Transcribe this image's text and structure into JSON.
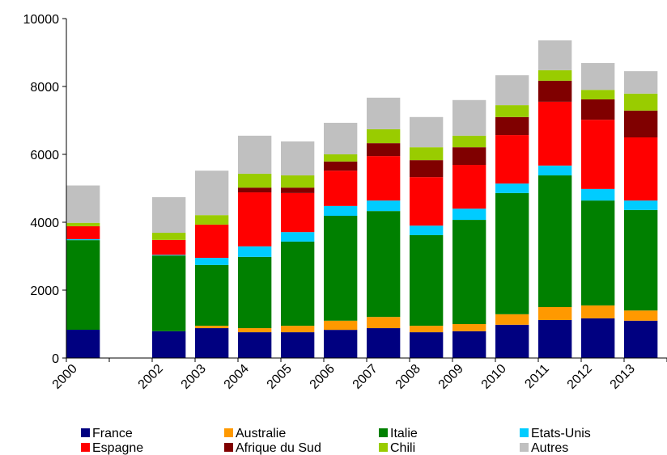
{
  "chart_data": {
    "type": "stacked_bar",
    "categories": [
      "2000",
      null,
      "2002",
      "2003",
      "2004",
      "2005",
      "2006",
      "2007",
      "2008",
      "2009",
      "2010",
      "2011",
      "2012",
      "2013"
    ],
    "series": [
      {
        "name": "France",
        "color": "#000080",
        "values": [
          833,
          null,
          790,
          880,
          760,
          760,
          830,
          880,
          760,
          790,
          980,
          1120,
          1170,
          1100
        ]
      },
      {
        "name": "Australie",
        "color": "#ff9900",
        "values": [
          0,
          null,
          0,
          70,
          120,
          190,
          270,
          330,
          190,
          210,
          310,
          380,
          380,
          300
        ]
      },
      {
        "name": "Italie",
        "color": "#008000",
        "values": [
          2640,
          null,
          2230,
          1790,
          2100,
          2480,
          3090,
          3120,
          2670,
          3070,
          3570,
          3880,
          3090,
          2960
        ]
      },
      {
        "name": "Etats-Unis",
        "color": "#00ccff",
        "values": [
          30,
          null,
          20,
          210,
          310,
          280,
          290,
          310,
          280,
          330,
          280,
          290,
          340,
          280
        ]
      },
      {
        "name": "Espagne",
        "color": "#ff0000",
        "values": [
          380,
          null,
          440,
          980,
          1590,
          1150,
          1040,
          1310,
          1430,
          1290,
          1430,
          1880,
          2040,
          1860
        ]
      },
      {
        "name": "Afrique du Sud",
        "color": "#800000",
        "values": [
          0,
          null,
          0,
          0,
          140,
          160,
          270,
          380,
          500,
          520,
          530,
          620,
          600,
          790
        ]
      },
      {
        "name": "Chili",
        "color": "#99cc00",
        "values": [
          100,
          null,
          210,
          280,
          410,
          360,
          210,
          410,
          380,
          340,
          350,
          310,
          280,
          500
        ]
      },
      {
        "name": "Autres",
        "color": "#c0c0c0",
        "values": [
          1100,
          null,
          1050,
          1310,
          1120,
          1000,
          930,
          930,
          890,
          1050,
          880,
          880,
          790,
          660
        ]
      }
    ],
    "ylim": [
      0,
      10000
    ],
    "yticks": [
      0,
      2000,
      4000,
      6000,
      8000,
      10000
    ],
    "legend": "bottom"
  }
}
